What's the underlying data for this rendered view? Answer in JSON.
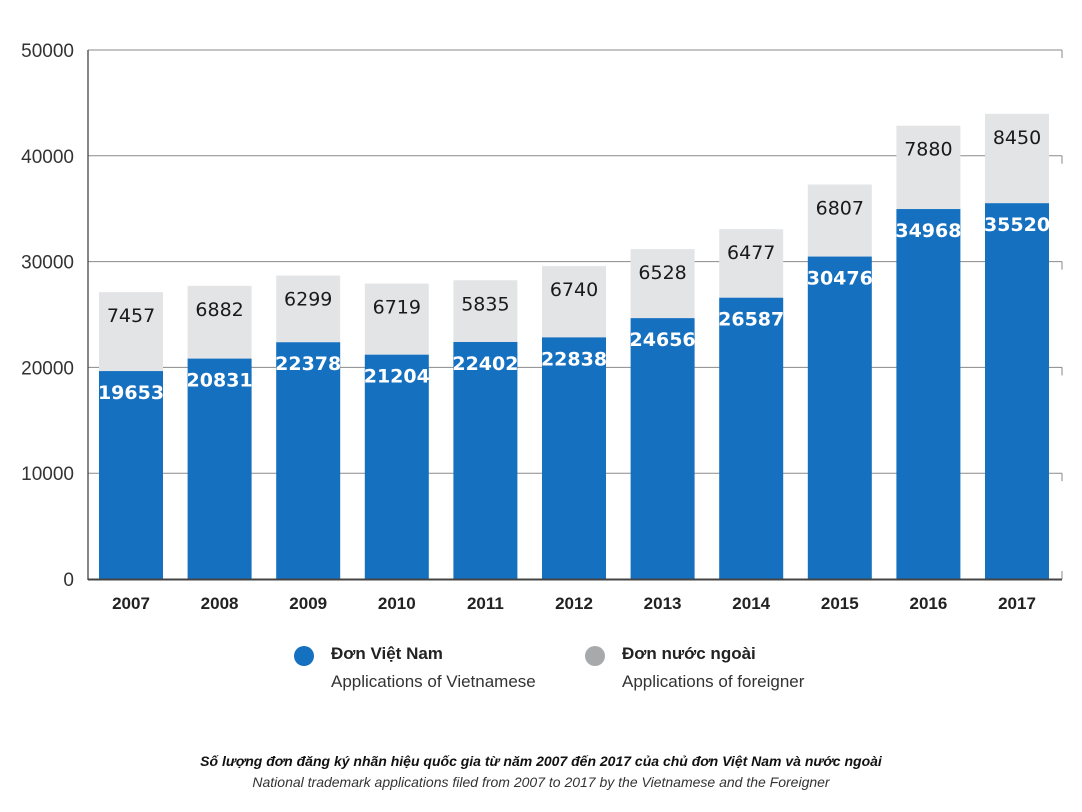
{
  "chart_data": {
    "type": "bar",
    "stacked": true,
    "categories": [
      "2007",
      "2008",
      "2009",
      "2010",
      "2011",
      "2012",
      "2013",
      "2014",
      "2015",
      "2016",
      "2017"
    ],
    "series": [
      {
        "name": "Đơn Việt Nam",
        "subtitle": "Applications of Vietnamese",
        "color": "#1570bf",
        "values": [
          19653,
          20831,
          22378,
          21204,
          22402,
          22838,
          24656,
          26587,
          30476,
          34968,
          35520
        ]
      },
      {
        "name": "Đơn nước ngoài",
        "subtitle": "Applications of foreigner",
        "color": "#e3e4e6",
        "legend_color": "#a8a9ab",
        "values": [
          7457,
          6882,
          6299,
          6719,
          5835,
          6740,
          6528,
          6477,
          6807,
          7880,
          8450
        ]
      }
    ],
    "ylim": [
      0,
      50000
    ],
    "yticks": [
      "0",
      "10000",
      "20000",
      "30000",
      "40000",
      "50000"
    ],
    "grid": true,
    "legend_position": "bottom",
    "caption_vi": "Số lượng đơn đăng ký nhãn hiệu quốc gia từ năm 2007 đến 2017 của chủ đơn Việt Nam và nước ngoài",
    "caption_en": "National trademark applications filed from 2007 to 2017 by the Vietnamese and the Foreigner"
  }
}
